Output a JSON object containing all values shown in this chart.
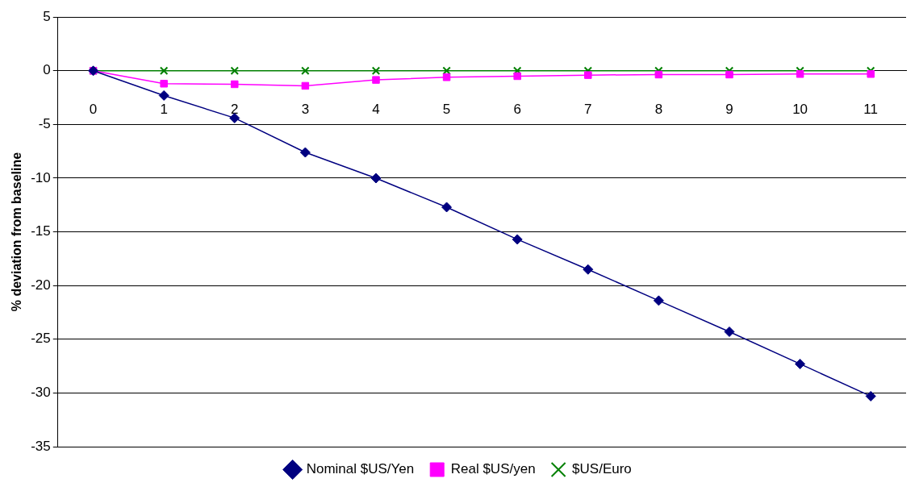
{
  "chart_data": {
    "type": "line",
    "ylabel": "% deviation from baseline",
    "categories": [
      "0",
      "1",
      "2",
      "3",
      "4",
      "5",
      "6",
      "7",
      "8",
      "9",
      "10",
      "11"
    ],
    "series": [
      {
        "name": "Nominal $US/Yen",
        "color": "#000080",
        "marker": "diamond",
        "values": [
          0,
          -2.3,
          -4.4,
          -7.6,
          -10.0,
          -12.7,
          -15.7,
          -18.5,
          -21.4,
          -24.3,
          -27.3,
          -30.3
        ]
      },
      {
        "name": "Real $US/yen",
        "color": "#ff00ff",
        "marker": "square",
        "values": [
          0,
          -1.2,
          -1.25,
          -1.4,
          -0.85,
          -0.6,
          -0.5,
          -0.4,
          -0.35,
          -0.35,
          -0.3,
          -0.3
        ]
      },
      {
        "name": "$US/Euro",
        "color": "#008000",
        "marker": "cross",
        "values": [
          0,
          0,
          0,
          0,
          0,
          0,
          0,
          0,
          0,
          0,
          0,
          0
        ]
      }
    ],
    "ylim": [
      -35,
      5
    ],
    "yticks": [
      -35,
      -30,
      -25,
      -20,
      -15,
      -10,
      -5,
      0,
      5
    ],
    "grid": "y",
    "legend": "bottom"
  }
}
